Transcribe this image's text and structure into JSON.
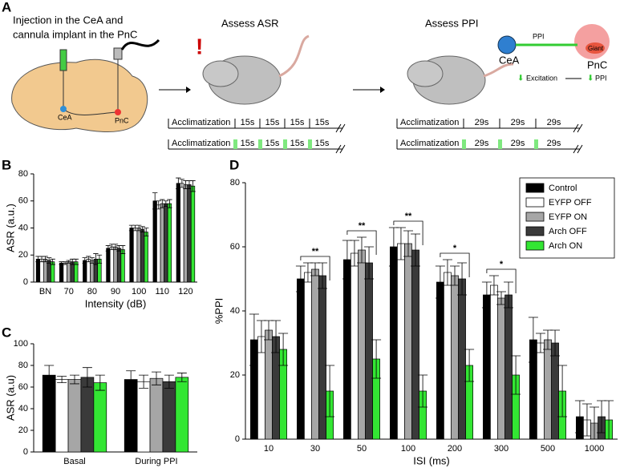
{
  "panel_a": {
    "panel_label": "A",
    "injection_text": [
      "Injection in the CeA and",
      "cannula implant in the PnC"
    ],
    "brain_labels": [
      "CeA",
      "PnC"
    ],
    "asr_title": "Assess ASR",
    "ppi_title": "Assess PPI",
    "circuit": {
      "source": "CeA",
      "target": "PnC",
      "pathway": "PPI",
      "neuron": "Giant",
      "excitation": "Excitation",
      "result": "PPI"
    },
    "asr_timeline": {
      "start": "Acclimatization",
      "segments": [
        "15s",
        "15s",
        "15s",
        "15s"
      ]
    },
    "ppi_timeline": {
      "start": "Acclimatization",
      "segments": [
        "29s",
        "29s",
        "29s"
      ]
    }
  },
  "chart_data": [
    {
      "type": "bar",
      "panel_label": "B",
      "ylabel": "ASR (a.u.)",
      "xlabel": "Intensity (dB)",
      "categories": [
        "BN",
        "70",
        "80",
        "90",
        "100",
        "110",
        "120"
      ],
      "ylim": [
        0,
        80
      ],
      "yticks": [
        0,
        20,
        40,
        60,
        80
      ],
      "series": [
        {
          "name": "Control",
          "color": "#000000",
          "values": [
            17,
            14,
            16,
            25,
            40,
            60,
            73
          ],
          "errors": [
            2,
            1,
            2,
            2,
            2,
            6,
            4
          ]
        },
        {
          "name": "EYFP OFF",
          "color": "#ffffff",
          "values": [
            17,
            14,
            17,
            26,
            40,
            57,
            73
          ],
          "errors": [
            2,
            1,
            2,
            2,
            2,
            3,
            3
          ]
        },
        {
          "name": "EYFP ON",
          "color": "#a6a6a6",
          "values": [
            17,
            15,
            16,
            26,
            40,
            58,
            72
          ],
          "errors": [
            2,
            1,
            2,
            2,
            2,
            3,
            3
          ]
        },
        {
          "name": "Arch OFF",
          "color": "#3a3a3a",
          "values": [
            16,
            15,
            17,
            25,
            39,
            58,
            72
          ],
          "errors": [
            2,
            2,
            4,
            2,
            2,
            2,
            3
          ]
        },
        {
          "name": "Arch ON",
          "color": "#33e633",
          "values": [
            15,
            15,
            17,
            24,
            37,
            58,
            71
          ],
          "errors": [
            2,
            2,
            3,
            3,
            3,
            3,
            4
          ]
        }
      ]
    },
    {
      "type": "bar",
      "panel_label": "C",
      "ylabel": "ASR (a.u)",
      "categories": [
        "Basal",
        "During PPI"
      ],
      "ylim": [
        0,
        100
      ],
      "yticks": [
        0,
        20,
        40,
        60,
        80,
        100
      ],
      "series": [
        {
          "name": "Control",
          "color": "#000000",
          "values": [
            71,
            67
          ],
          "errors": [
            9,
            8
          ]
        },
        {
          "name": "EYFP OFF",
          "color": "#ffffff",
          "values": [
            67,
            65
          ],
          "errors": [
            3,
            6
          ]
        },
        {
          "name": "EYFP ON",
          "color": "#a6a6a6",
          "values": [
            67,
            68
          ],
          "errors": [
            4,
            6
          ]
        },
        {
          "name": "Arch OFF",
          "color": "#3a3a3a",
          "values": [
            69,
            65
          ],
          "errors": [
            9,
            6
          ]
        },
        {
          "name": "Arch ON",
          "color": "#33e633",
          "values": [
            64,
            69
          ],
          "errors": [
            7,
            4
          ]
        }
      ]
    },
    {
      "type": "bar",
      "panel_label": "D",
      "ylabel": "%PPI",
      "xlabel": "ISI (ms)",
      "legend": "upper right",
      "categories": [
        "10",
        "30",
        "50",
        "100",
        "200",
        "300",
        "500",
        "1000"
      ],
      "ylim": [
        0,
        80
      ],
      "yticks": [
        0,
        20,
        40,
        60,
        80
      ],
      "series": [
        {
          "name": "Control",
          "color": "#000000",
          "values": [
            31,
            50,
            56,
            60,
            49,
            45,
            31,
            7
          ],
          "errors": [
            8,
            4,
            6,
            6,
            5,
            4,
            7,
            5
          ]
        },
        {
          "name": "EYFP OFF",
          "color": "#ffffff",
          "values": [
            32,
            52,
            58,
            61,
            52,
            48,
            30,
            6
          ],
          "errors": [
            5,
            3,
            4,
            5,
            4,
            3,
            3,
            5
          ]
        },
        {
          "name": "EYFP ON",
          "color": "#a6a6a6",
          "values": [
            34,
            53,
            59,
            61,
            51,
            44,
            31,
            5
          ],
          "errors": [
            3,
            2,
            4,
            4,
            3,
            2,
            3,
            5
          ]
        },
        {
          "name": "Arch OFF",
          "color": "#3a3a3a",
          "values": [
            32,
            51,
            55,
            59,
            50,
            45,
            30,
            7
          ],
          "errors": [
            5,
            4,
            5,
            5,
            5,
            4,
            4,
            5
          ]
        },
        {
          "name": "Arch ON",
          "color": "#33e633",
          "values": [
            28,
            15,
            25,
            15,
            23,
            20,
            15,
            6
          ],
          "errors": [
            5,
            8,
            6,
            5,
            5,
            6,
            8,
            6
          ]
        }
      ],
      "annotations": [
        {
          "x": "30",
          "text": "**"
        },
        {
          "x": "50",
          "text": "**"
        },
        {
          "x": "100",
          "text": "**"
        },
        {
          "x": "200",
          "text": "*"
        },
        {
          "x": "300",
          "text": "*"
        }
      ]
    }
  ]
}
